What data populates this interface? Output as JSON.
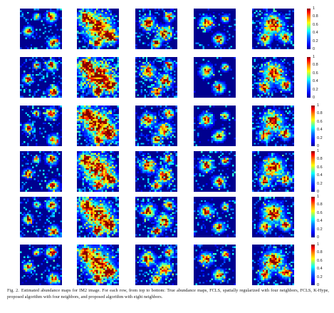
{
  "figure": {
    "rows": 6,
    "columns": 5,
    "colorbar": {
      "ticks": [
        "0",
        "0.2",
        "0.4",
        "0.6",
        "0.8",
        "1"
      ],
      "colormap": [
        "#00008f",
        "#0000ff",
        "#00ffff",
        "#ffff00",
        "#ff0000",
        "#800000"
      ]
    },
    "row_labels": [
      "True abundance maps",
      "FCLS",
      "spatially regularized with four neighbors",
      "FCLS, K-Hype",
      "proposed algorithm with four neighbors",
      "proposed algorithm with eight neighbors"
    ]
  },
  "caption": {
    "label": "Fig. 2.",
    "text": "Estimated abundance maps for IM2 image. For each row, from top to bottom: True abundance maps, FCLS, spatially regularized with four neighbors, FCLS, K-Hype, proposed algorithm with four neighbors, and proposed algorithm with eight neighbors."
  }
}
